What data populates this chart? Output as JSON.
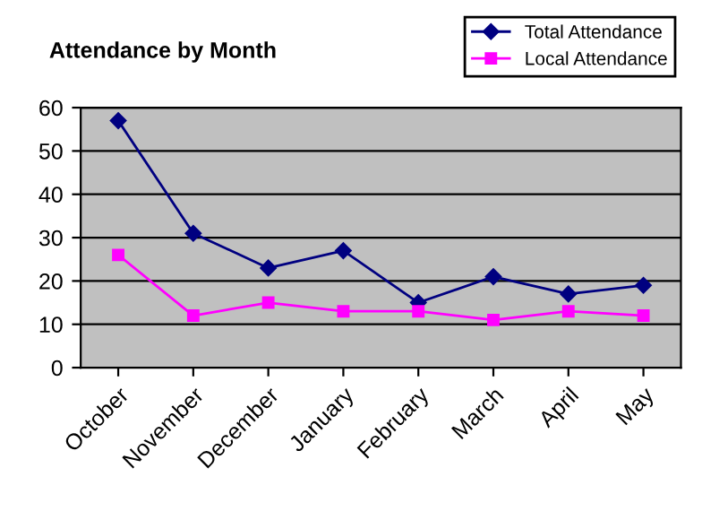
{
  "chart_data": {
    "type": "line",
    "title": "Attendance by Month",
    "categories": [
      "October",
      "November",
      "December",
      "January",
      "February",
      "March",
      "April",
      "May"
    ],
    "series": [
      {
        "name": "Total Attendance",
        "color": "#000080",
        "marker": "diamond",
        "values": [
          57,
          31,
          23,
          27,
          15,
          21,
          17,
          19
        ]
      },
      {
        "name": "Local Attendance",
        "color": "#ff00ff",
        "marker": "square",
        "values": [
          26,
          12,
          15,
          13,
          13,
          11,
          13,
          12
        ]
      }
    ],
    "ylim": [
      0,
      60
    ],
    "yticks": [
      0,
      10,
      20,
      30,
      40,
      50,
      60
    ],
    "grid": "y",
    "legend": "top right",
    "line_style": "solid"
  }
}
